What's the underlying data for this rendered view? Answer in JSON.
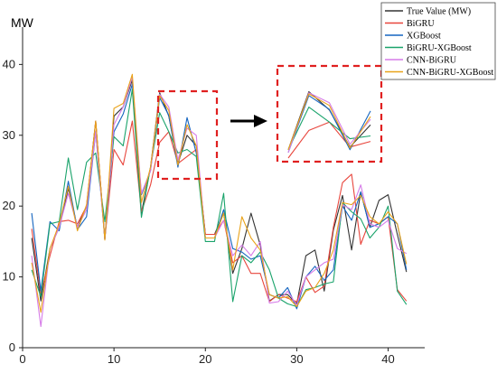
{
  "chart_data": {
    "type": "line",
    "ylabel": "MW",
    "xlim": [
      0,
      44
    ],
    "ylim": [
      0,
      44
    ],
    "xticks": [
      0,
      10,
      20,
      30,
      40
    ],
    "yticks": [
      0,
      10,
      20,
      30,
      40
    ],
    "grid": false,
    "legend": "top-right",
    "x": [
      1,
      2,
      3,
      4,
      5,
      6,
      7,
      8,
      9,
      10,
      11,
      12,
      13,
      14,
      15,
      16,
      17,
      18,
      19,
      20,
      21,
      22,
      23,
      24,
      25,
      26,
      27,
      28,
      29,
      30,
      31,
      32,
      33,
      34,
      35,
      36,
      37,
      38,
      39,
      40,
      41,
      42
    ],
    "series": [
      {
        "name": "True Value (MW)",
        "color": "#333333",
        "values": [
          15.5,
          6.6,
          14,
          17,
          22.5,
          17,
          20,
          32,
          15.3,
          32.7,
          34,
          37.8,
          19,
          25.5,
          36,
          32.7,
          26,
          30,
          28.5,
          16,
          16,
          19,
          10.5,
          14,
          19,
          14.5,
          6.6,
          7.5,
          7.5,
          6.2,
          13,
          13.8,
          8,
          16.6,
          21.5,
          13.8,
          22,
          17,
          20.8,
          21.6,
          16,
          10.7
        ]
      },
      {
        "name": "BiGRU",
        "color": "#e8453c",
        "values": [
          16.8,
          7.5,
          13,
          17.8,
          18,
          17.5,
          20,
          32,
          15.3,
          28,
          25.8,
          32,
          19.2,
          23,
          29,
          30.5,
          26,
          27,
          28,
          16,
          16,
          18,
          12,
          13,
          10.5,
          10.5,
          6.5,
          7.5,
          7,
          6.5,
          10,
          7.8,
          8.7,
          17,
          23.3,
          24.5,
          14.6,
          18,
          17.5,
          18.5,
          8.2,
          6.6
        ]
      },
      {
        "name": "XGBoost",
        "color": "#1565c0",
        "values": [
          19,
          8,
          17.8,
          16.5,
          23.5,
          16.7,
          18.5,
          30.5,
          15.3,
          30.5,
          33,
          37.2,
          21.6,
          25,
          35.3,
          32.8,
          25.5,
          32.5,
          27.5,
          15.5,
          15.5,
          19.5,
          14,
          13.5,
          12.5,
          13,
          7.5,
          7,
          8.5,
          5.5,
          10,
          11.5,
          9.5,
          11,
          20,
          18,
          22,
          17,
          17.5,
          18.5,
          17.5,
          11
        ]
      },
      {
        "name": "BiGRU-XGBoost",
        "color": "#1aa36b",
        "values": [
          11,
          7.2,
          17.5,
          17.8,
          26.8,
          19.5,
          26.2,
          27.5,
          17.8,
          29.8,
          28.5,
          36.5,
          18.4,
          25.5,
          33.2,
          30.5,
          27.5,
          28,
          27,
          15,
          15,
          21.8,
          6.5,
          13,
          12,
          13.5,
          11,
          7,
          6.2,
          5.8,
          8.2,
          8.5,
          9,
          9.3,
          20.5,
          19.2,
          18.2,
          15.5,
          17,
          20,
          8,
          6.1
        ]
      },
      {
        "name": "CNN-BiGRU",
        "color": "#d67ce8",
        "values": [
          13,
          3,
          14,
          17,
          21.8,
          17,
          19.5,
          30.5,
          15.3,
          31.5,
          34,
          38.2,
          21.8,
          25,
          35.8,
          34,
          26.5,
          31,
          30,
          15.5,
          15.5,
          18,
          13,
          14.5,
          13,
          15,
          6.3,
          6.5,
          8,
          6,
          10,
          11,
          12,
          12.5,
          20.2,
          19.5,
          23,
          17.5,
          17,
          18,
          14,
          13.3
        ]
      },
      {
        "name": "CNN-BiGRU-XGBoost",
        "color": "#e9a31a",
        "values": [
          12,
          5,
          14,
          17.5,
          22.8,
          16.5,
          20.2,
          32,
          15.2,
          33.8,
          34.5,
          38.6,
          20.5,
          25.5,
          35.6,
          33.5,
          25.8,
          31.5,
          28.5,
          15.5,
          15.5,
          19,
          11,
          18.5,
          15.5,
          13.8,
          7.5,
          7,
          7.2,
          5.8,
          8,
          8.5,
          10.5,
          13.8,
          20.5,
          20.2,
          21.5,
          18.5,
          17.5,
          19.2,
          17.5,
          11.8
        ]
      }
    ],
    "zoom_range": [
      14,
      18
    ]
  }
}
